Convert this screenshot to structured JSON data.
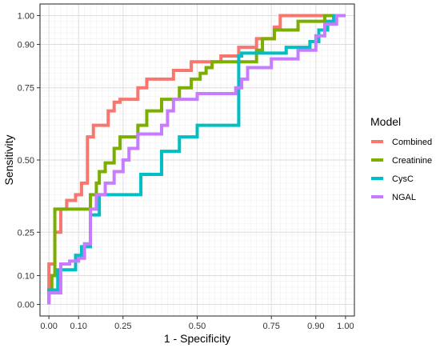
{
  "chart_data": {
    "type": "line",
    "title": "",
    "xlabel": "1 - Specificity",
    "ylabel": "Sensitivity",
    "xlim": [
      -0.03,
      1.03
    ],
    "ylim": [
      -0.04,
      1.04
    ],
    "x_ticks": [
      0.0,
      0.1,
      0.25,
      0.5,
      0.75,
      0.9,
      1.0
    ],
    "x_tick_labels": [
      "0.00",
      "0.10",
      "0.25",
      "0.50",
      "0.75",
      "0.90",
      "1.00"
    ],
    "y_ticks": [
      0.0,
      0.1,
      0.25,
      0.5,
      0.75,
      0.9,
      1.0
    ],
    "y_tick_labels": [
      "0.00",
      "0.10",
      "0.25",
      "0.50",
      "0.75",
      "0.90",
      "1.00"
    ],
    "grid": true,
    "legend": {
      "title": "Model",
      "position": "right"
    },
    "series": [
      {
        "name": "Combined",
        "color": "#F8766D",
        "points": [
          [
            0,
            0
          ],
          [
            0,
            0.1
          ],
          [
            0,
            0.14
          ],
          [
            0.02,
            0.14
          ],
          [
            0.02,
            0.25
          ],
          [
            0.04,
            0.25
          ],
          [
            0.04,
            0.33
          ],
          [
            0.06,
            0.33
          ],
          [
            0.06,
            0.36
          ],
          [
            0.09,
            0.36
          ],
          [
            0.09,
            0.38
          ],
          [
            0.11,
            0.38
          ],
          [
            0.11,
            0.42
          ],
          [
            0.13,
            0.42
          ],
          [
            0.13,
            0.58
          ],
          [
            0.15,
            0.58
          ],
          [
            0.15,
            0.62
          ],
          [
            0.2,
            0.62
          ],
          [
            0.2,
            0.67
          ],
          [
            0.22,
            0.67
          ],
          [
            0.22,
            0.7
          ],
          [
            0.24,
            0.7
          ],
          [
            0.24,
            0.71
          ],
          [
            0.3,
            0.71
          ],
          [
            0.3,
            0.75
          ],
          [
            0.33,
            0.75
          ],
          [
            0.33,
            0.78
          ],
          [
            0.42,
            0.78
          ],
          [
            0.42,
            0.81
          ],
          [
            0.48,
            0.81
          ],
          [
            0.48,
            0.84
          ],
          [
            0.58,
            0.84
          ],
          [
            0.58,
            0.86
          ],
          [
            0.64,
            0.86
          ],
          [
            0.64,
            0.89
          ],
          [
            0.7,
            0.89
          ],
          [
            0.7,
            0.92
          ],
          [
            0.76,
            0.92
          ],
          [
            0.76,
            0.96
          ],
          [
            0.78,
            0.96
          ],
          [
            0.78,
            1.0
          ],
          [
            1.0,
            1.0
          ]
        ]
      },
      {
        "name": "Creatinine",
        "color": "#7CAE00",
        "points": [
          [
            0,
            0
          ],
          [
            0,
            0.05
          ],
          [
            0.01,
            0.05
          ],
          [
            0.01,
            0.1
          ],
          [
            0.02,
            0.1
          ],
          [
            0.02,
            0.33
          ],
          [
            0.14,
            0.33
          ],
          [
            0.14,
            0.38
          ],
          [
            0.16,
            0.38
          ],
          [
            0.16,
            0.42
          ],
          [
            0.17,
            0.42
          ],
          [
            0.17,
            0.46
          ],
          [
            0.19,
            0.46
          ],
          [
            0.19,
            0.49
          ],
          [
            0.22,
            0.49
          ],
          [
            0.22,
            0.54
          ],
          [
            0.24,
            0.54
          ],
          [
            0.24,
            0.58
          ],
          [
            0.3,
            0.58
          ],
          [
            0.3,
            0.62
          ],
          [
            0.33,
            0.62
          ],
          [
            0.33,
            0.67
          ],
          [
            0.38,
            0.67
          ],
          [
            0.38,
            0.71
          ],
          [
            0.44,
            0.71
          ],
          [
            0.44,
            0.75
          ],
          [
            0.48,
            0.75
          ],
          [
            0.48,
            0.78
          ],
          [
            0.51,
            0.78
          ],
          [
            0.51,
            0.8
          ],
          [
            0.53,
            0.8
          ],
          [
            0.53,
            0.82
          ],
          [
            0.55,
            0.82
          ],
          [
            0.55,
            0.84
          ],
          [
            0.7,
            0.84
          ],
          [
            0.7,
            0.88
          ],
          [
            0.72,
            0.88
          ],
          [
            0.72,
            0.92
          ],
          [
            0.76,
            0.92
          ],
          [
            0.76,
            0.95
          ],
          [
            0.84,
            0.95
          ],
          [
            0.84,
            0.98
          ],
          [
            0.93,
            0.98
          ],
          [
            0.93,
            1.0
          ],
          [
            1.0,
            1.0
          ]
        ]
      },
      {
        "name": "CysC",
        "color": "#00BFC4",
        "points": [
          [
            0,
            0
          ],
          [
            0,
            0.05
          ],
          [
            0.03,
            0.05
          ],
          [
            0.03,
            0.12
          ],
          [
            0.09,
            0.12
          ],
          [
            0.09,
            0.17
          ],
          [
            0.11,
            0.17
          ],
          [
            0.11,
            0.2
          ],
          [
            0.14,
            0.2
          ],
          [
            0.14,
            0.31
          ],
          [
            0.17,
            0.31
          ],
          [
            0.17,
            0.38
          ],
          [
            0.31,
            0.38
          ],
          [
            0.31,
            0.45
          ],
          [
            0.38,
            0.45
          ],
          [
            0.38,
            0.53
          ],
          [
            0.44,
            0.53
          ],
          [
            0.44,
            0.58
          ],
          [
            0.5,
            0.58
          ],
          [
            0.5,
            0.62
          ],
          [
            0.64,
            0.62
          ],
          [
            0.64,
            0.86
          ],
          [
            0.65,
            0.86
          ],
          [
            0.65,
            0.87
          ],
          [
            0.8,
            0.87
          ],
          [
            0.8,
            0.89
          ],
          [
            0.88,
            0.89
          ],
          [
            0.88,
            0.91
          ],
          [
            0.91,
            0.91
          ],
          [
            0.91,
            0.95
          ],
          [
            0.94,
            0.95
          ],
          [
            0.94,
            0.98
          ],
          [
            0.96,
            0.98
          ],
          [
            0.96,
            1.0
          ],
          [
            1.0,
            1.0
          ]
        ]
      },
      {
        "name": "NGAL",
        "color": "#C77CFF",
        "points": [
          [
            0,
            0
          ],
          [
            0,
            0.04
          ],
          [
            0.04,
            0.04
          ],
          [
            0.04,
            0.14
          ],
          [
            0.07,
            0.14
          ],
          [
            0.07,
            0.15
          ],
          [
            0.1,
            0.15
          ],
          [
            0.1,
            0.16
          ],
          [
            0.12,
            0.16
          ],
          [
            0.12,
            0.21
          ],
          [
            0.14,
            0.21
          ],
          [
            0.14,
            0.33
          ],
          [
            0.16,
            0.33
          ],
          [
            0.16,
            0.38
          ],
          [
            0.19,
            0.38
          ],
          [
            0.19,
            0.42
          ],
          [
            0.22,
            0.42
          ],
          [
            0.22,
            0.46
          ],
          [
            0.25,
            0.46
          ],
          [
            0.25,
            0.5
          ],
          [
            0.27,
            0.5
          ],
          [
            0.27,
            0.54
          ],
          [
            0.3,
            0.54
          ],
          [
            0.3,
            0.59
          ],
          [
            0.38,
            0.59
          ],
          [
            0.38,
            0.62
          ],
          [
            0.4,
            0.62
          ],
          [
            0.4,
            0.67
          ],
          [
            0.42,
            0.67
          ],
          [
            0.42,
            0.71
          ],
          [
            0.5,
            0.71
          ],
          [
            0.5,
            0.73
          ],
          [
            0.63,
            0.73
          ],
          [
            0.63,
            0.75
          ],
          [
            0.65,
            0.75
          ],
          [
            0.65,
            0.78
          ],
          [
            0.67,
            0.78
          ],
          [
            0.67,
            0.82
          ],
          [
            0.75,
            0.82
          ],
          [
            0.75,
            0.85
          ],
          [
            0.84,
            0.85
          ],
          [
            0.84,
            0.88
          ],
          [
            0.9,
            0.88
          ],
          [
            0.9,
            0.93
          ],
          [
            0.93,
            0.93
          ],
          [
            0.93,
            0.97
          ],
          [
            0.97,
            0.97
          ],
          [
            0.97,
            1.0
          ],
          [
            1.0,
            1.0
          ]
        ]
      }
    ]
  }
}
